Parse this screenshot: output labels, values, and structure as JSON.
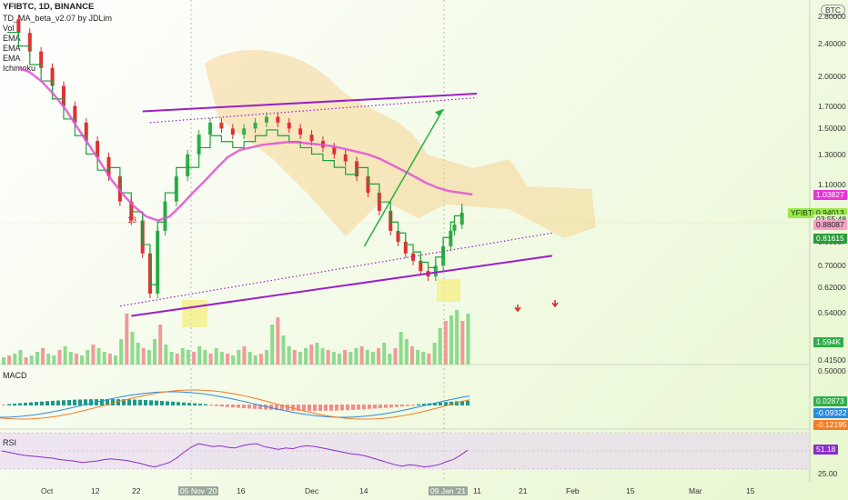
{
  "chart_data": {
    "type": "line",
    "title": "YFIBTC, 1D, BINANCE",
    "indicators": [
      "TD_MA_beta_v2.07 by JDLim",
      "Vol",
      "EMA",
      "EMA",
      "EMA",
      "Ichimoku"
    ],
    "currency": "BTC",
    "symbol": "YFIBTC",
    "scale": "log",
    "price_axis_ticks": [
      "2.80000",
      "2.40000",
      "2.00000",
      "1.70000",
      "1.50000",
      "1.30000",
      "1.10000",
      "0.80087",
      "0.70000",
      "0.62000",
      "0.54000",
      "0.41500"
    ],
    "x_axis_ticks": [
      "Oct",
      "12",
      "22",
      "Nov",
      "16",
      "Dec",
      "14",
      "11",
      "21",
      "Feb",
      "15",
      "Mar",
      "15"
    ],
    "highlighted_dates": [
      "05 Nov '20",
      "09 Jan '21"
    ],
    "x_positions_day": [
      0,
      3,
      6,
      9,
      12,
      15,
      18,
      21,
      24,
      27,
      30,
      33,
      36,
      38,
      40,
      42,
      45,
      48,
      51,
      54,
      57,
      60,
      63,
      66,
      69,
      72,
      75,
      78,
      81,
      84,
      87,
      90,
      93,
      96,
      99,
      102,
      104,
      106,
      108,
      110,
      112,
      114,
      116,
      118,
      119,
      121
    ],
    "price_series": [
      2.75,
      2.55,
      2.3,
      2.1,
      1.9,
      1.7,
      1.55,
      1.4,
      1.28,
      1.15,
      1.0,
      0.9,
      0.75,
      0.6,
      0.85,
      1.0,
      1.15,
      1.3,
      1.45,
      1.55,
      1.5,
      1.45,
      1.5,
      1.55,
      1.6,
      1.55,
      1.5,
      1.45,
      1.4,
      1.35,
      1.3,
      1.25,
      1.15,
      1.05,
      0.95,
      0.85,
      0.8,
      0.75,
      0.72,
      0.68,
      0.66,
      0.7,
      0.78,
      0.85,
      0.88,
      0.94
    ],
    "ema_pink": [
      2.1,
      2.05,
      1.95,
      1.82,
      1.68,
      1.52,
      1.38,
      1.25,
      1.13,
      1.04,
      0.97,
      0.92,
      0.9,
      0.92,
      0.98,
      1.05,
      1.12,
      1.2,
      1.28,
      1.33,
      1.35,
      1.37,
      1.38,
      1.39,
      1.39,
      1.38,
      1.37,
      1.36,
      1.34,
      1.32,
      1.3,
      1.27,
      1.23,
      1.19,
      1.15,
      1.11,
      1.08,
      1.06,
      1.05,
      1.04
    ],
    "resistance_solid": {
      "from": {
        "day": 36,
        "price": 1.65
      },
      "to": {
        "day": 125,
        "price": 1.82
      }
    },
    "resistance_dotted": {
      "from": {
        "day": 38,
        "price": 1.55
      },
      "to": {
        "day": 125,
        "price": 1.78
      }
    },
    "support_solid": {
      "from": {
        "day": 33,
        "price": 0.53
      },
      "to": {
        "day": 145,
        "price": 0.74
      }
    },
    "support_dotted": {
      "from": {
        "day": 30,
        "price": 0.56
      },
      "to": {
        "day": 145,
        "price": 0.84
      }
    },
    "projection_arrow": {
      "from": {
        "day": 95,
        "price": 0.78
      },
      "to": {
        "day": 116,
        "price": 1.67
      }
    },
    "volume": [
      4,
      5,
      6,
      8,
      4,
      5,
      7,
      9,
      6,
      5,
      8,
      10,
      7,
      6,
      5,
      8,
      11,
      9,
      7,
      6,
      5,
      14,
      28,
      18,
      12,
      9,
      8,
      14,
      22,
      11,
      7,
      6,
      9,
      8,
      7,
      10,
      8,
      6,
      9,
      7,
      6,
      5,
      8,
      10,
      7,
      5,
      6,
      8,
      22,
      26,
      16,
      10,
      8,
      7,
      9,
      11,
      12,
      9,
      8,
      7,
      6,
      8,
      7,
      9,
      10,
      8,
      7,
      9,
      12,
      6,
      9,
      18,
      14,
      10,
      8,
      7,
      6,
      12,
      20,
      24,
      27,
      30,
      24,
      28
    ],
    "volume_label": "1.594K",
    "macd": {
      "label": "MACD",
      "values": [
        "0.02873",
        "-0.09322",
        "-0.12195"
      ],
      "axis_top": "0.50000"
    },
    "rsi": {
      "label": "RSI",
      "value": "51.18",
      "axis_low": "25.00",
      "values": [
        50,
        48,
        46,
        44,
        43,
        42,
        41,
        40,
        38,
        37,
        36,
        34,
        35,
        36,
        38,
        39,
        38,
        37,
        35,
        33,
        30,
        28,
        31,
        34,
        40,
        48,
        55,
        60,
        58,
        56,
        57,
        55,
        54,
        57,
        59,
        60,
        56,
        54,
        52,
        54,
        53,
        56,
        57,
        56,
        54,
        52,
        50,
        48,
        46,
        45,
        43,
        40,
        37,
        34,
        31,
        29,
        31,
        30,
        28,
        29,
        31,
        35,
        38,
        44,
        51
      ]
    },
    "price_badges": [
      {
        "text": "1.03827",
        "kind": "magenta",
        "price": 1.03827
      },
      {
        "text": "YFIBTC",
        "kind": "green",
        "price": 0.94013
      },
      {
        "text": "0.94013",
        "kind": "green",
        "price": 0.94013
      },
      {
        "text": "03:55:48",
        "kind": "light",
        "price": 0.905
      },
      {
        "text": "0.88087",
        "kind": "pink",
        "price": 0.88087
      },
      {
        "text": "0.81615",
        "kind": "darkgreen",
        "price": 0.81615
      }
    ],
    "annotations": [
      "13"
    ]
  }
}
